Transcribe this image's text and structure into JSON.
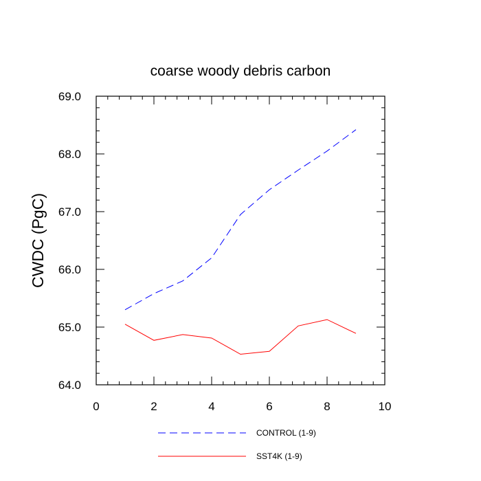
{
  "chart_data": {
    "type": "line",
    "title": "coarse woody debris carbon",
    "xlabel": "",
    "ylabel": "CWDC  (PgC)",
    "xlim": [
      0,
      10
    ],
    "ylim": [
      64.0,
      69.0
    ],
    "x_ticks": [
      "0",
      "2",
      "4",
      "6",
      "8",
      "10"
    ],
    "y_ticks": [
      "64.0",
      "65.0",
      "66.0",
      "67.0",
      "68.0",
      "69.0"
    ],
    "grid": false,
    "legend_position": "bottom",
    "series": [
      {
        "name": "CONTROL (1-9)",
        "color": "#0000ff",
        "line_style": "dashed",
        "x": [
          1,
          2,
          3,
          4,
          5,
          6,
          7,
          8,
          9
        ],
        "y": [
          65.3,
          65.58,
          65.8,
          66.2,
          66.95,
          67.38,
          67.72,
          68.05,
          68.42
        ]
      },
      {
        "name": "SST4K (1-9)",
        "color": "#ff0000",
        "line_style": "solid",
        "x": [
          1,
          2,
          3,
          4,
          5,
          6,
          7,
          8,
          9
        ],
        "y": [
          65.05,
          64.77,
          64.87,
          64.81,
          64.53,
          64.58,
          65.02,
          65.13,
          64.89
        ]
      }
    ]
  }
}
